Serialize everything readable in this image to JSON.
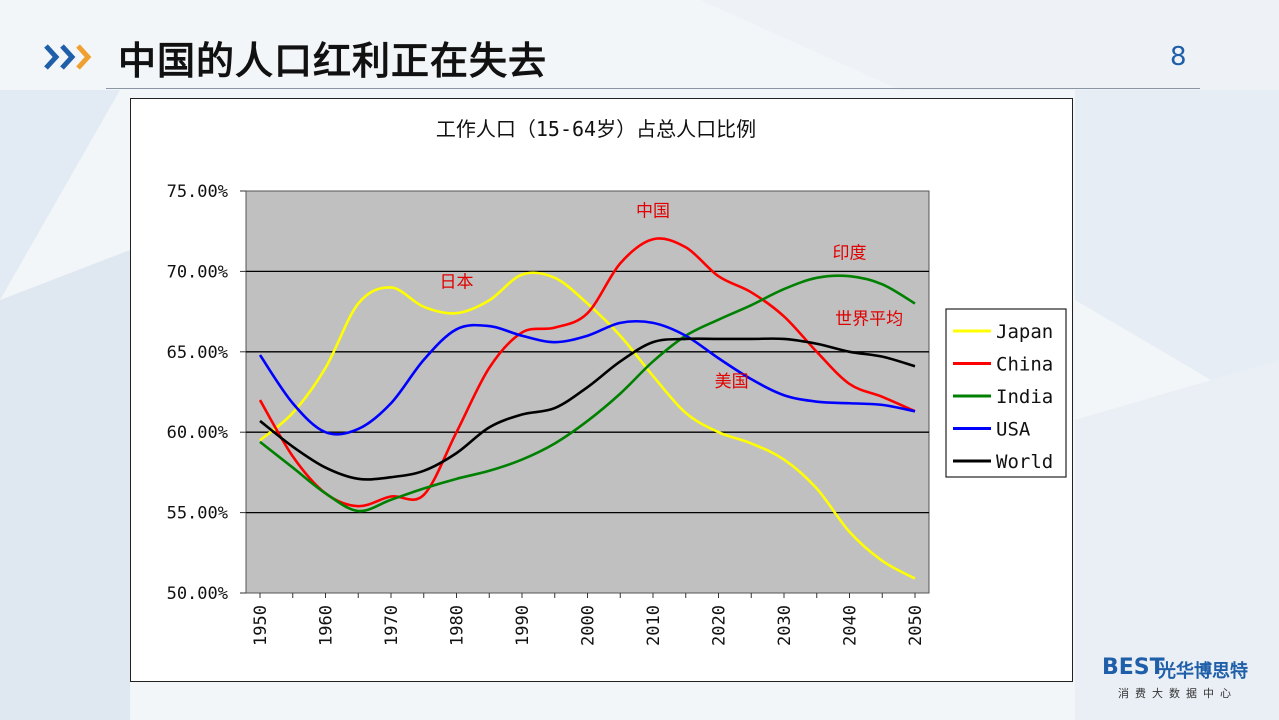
{
  "slide": {
    "title": "中国的人口红利正在失去",
    "page_number": "8"
  },
  "logo": {
    "mark": "BEST",
    "name": "光华博思特",
    "subtitle": "消费大数据中心"
  },
  "colors": {
    "accent_blue": "#1f5ea8",
    "accent_orange": "#f0a030",
    "plot_background": "#c0c0c0"
  },
  "icons": [
    "chevron-right-icon"
  ],
  "chart_data": {
    "type": "line",
    "title": "工作人口（15-64岁）占总人口比例",
    "xlabel": "",
    "ylabel": "",
    "x": [
      1950,
      1955,
      1960,
      1965,
      1970,
      1975,
      1980,
      1985,
      1990,
      1995,
      2000,
      2005,
      2010,
      2015,
      2020,
      2025,
      2030,
      2035,
      2040,
      2045,
      2050
    ],
    "x_ticks": [
      "1950",
      "1960",
      "1970",
      "1980",
      "1990",
      "2000",
      "2010",
      "2020",
      "2030",
      "2040",
      "2050"
    ],
    "y_ticks": [
      "75.00%",
      "70.00%",
      "65.00%",
      "60.00%",
      "55.00%",
      "50.00%"
    ],
    "ylim": [
      50,
      75
    ],
    "grid": "horizontal",
    "legend_position": "right",
    "series": [
      {
        "name": "Japan",
        "color": "#ffff00",
        "values": [
          59.5,
          61.2,
          64.0,
          68.0,
          69.0,
          67.8,
          67.4,
          68.2,
          69.8,
          69.6,
          68.0,
          66.0,
          63.5,
          61.2,
          60.0,
          59.3,
          58.3,
          56.5,
          53.8,
          52.0,
          50.9
        ]
      },
      {
        "name": "China",
        "color": "#ff0000",
        "values": [
          62.0,
          58.5,
          56.2,
          55.4,
          56.0,
          56.1,
          60.0,
          64.0,
          66.2,
          66.5,
          67.4,
          70.5,
          72.0,
          71.5,
          69.7,
          68.7,
          67.2,
          65.0,
          63.0,
          62.2,
          61.3
        ]
      },
      {
        "name": "India",
        "color": "#008000",
        "values": [
          59.4,
          57.8,
          56.2,
          55.1,
          55.8,
          56.5,
          57.1,
          57.6,
          58.3,
          59.3,
          60.7,
          62.4,
          64.4,
          66.0,
          67.0,
          67.9,
          68.9,
          69.6,
          69.7,
          69.2,
          68.0
        ]
      },
      {
        "name": "USA",
        "color": "#0000ff",
        "values": [
          64.8,
          61.8,
          60.0,
          60.2,
          61.8,
          64.5,
          66.4,
          66.6,
          66.0,
          65.6,
          66.0,
          66.8,
          66.8,
          66.0,
          64.6,
          63.3,
          62.3,
          61.9,
          61.8,
          61.7,
          61.3
        ]
      },
      {
        "name": "World",
        "color": "#000000",
        "values": [
          60.7,
          59.1,
          57.8,
          57.1,
          57.2,
          57.6,
          58.7,
          60.3,
          61.1,
          61.5,
          62.8,
          64.4,
          65.6,
          65.8,
          65.8,
          65.8,
          65.8,
          65.5,
          65.0,
          64.7,
          64.1
        ]
      }
    ],
    "annotations": [
      {
        "text": "日本",
        "series": "Japan",
        "year": 1980,
        "value": 69.0
      },
      {
        "text": "中国",
        "series": "China",
        "year": 2010,
        "value": 73.4
      },
      {
        "text": "印度",
        "series": "India",
        "year": 2040,
        "value": 70.8
      },
      {
        "text": "世界平均",
        "series": "World",
        "year": 2043,
        "value": 66.7
      },
      {
        "text": "美国",
        "series": "USA",
        "year": 2022,
        "value": 62.8
      }
    ]
  }
}
